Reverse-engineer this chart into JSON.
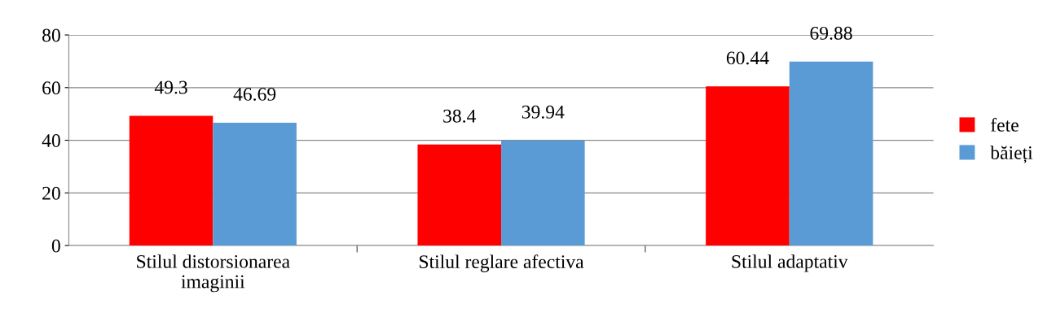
{
  "chart_data": {
    "type": "bar",
    "categories": [
      "Stilul distorsionarea imaginii",
      "Stilul reglare afectiva",
      "Stilul adaptativ"
    ],
    "series": [
      {
        "name": "fete",
        "color": "#ff0000",
        "values": [
          49.3,
          38.4,
          60.44
        ]
      },
      {
        "name": "băieți",
        "color": "#5b9bd5",
        "values": [
          46.69,
          39.94,
          69.88
        ]
      }
    ],
    "ylim": [
      0,
      80
    ],
    "yticks": [
      0,
      20,
      40,
      60,
      80
    ],
    "grid": "y",
    "legend": "right",
    "data_labels": true
  }
}
